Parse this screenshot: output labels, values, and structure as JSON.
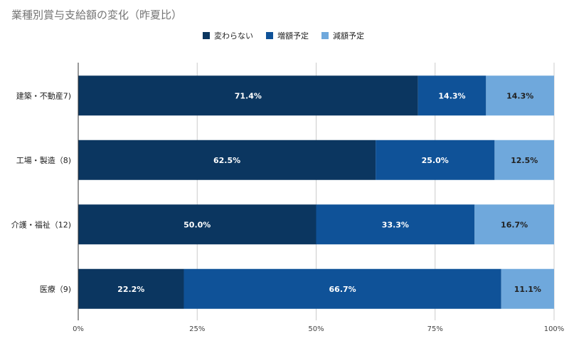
{
  "chart_data": {
    "type": "bar",
    "orientation": "horizontal",
    "stacked": "percent",
    "title": "業種別賞与支給額の変化（昨夏比）",
    "categories": [
      "建築・不動産7)",
      "工場・製造（8)",
      "介護・福祉（12)",
      "医療（9)"
    ],
    "series": [
      {
        "name": "変わらない",
        "color": "#0b3660",
        "values": [
          71.4,
          62.5,
          50.0,
          22.2
        ],
        "labels": [
          "71.4%",
          "62.5%",
          "50.0%",
          "22.2%"
        ],
        "label_color": "#ffffff"
      },
      {
        "name": "増額予定",
        "color": "#0f5298",
        "values": [
          14.3,
          25.0,
          33.3,
          66.7
        ],
        "labels": [
          "14.3%",
          "25.0%",
          "33.3%",
          "66.7%"
        ],
        "label_color": "#ffffff"
      },
      {
        "name": "減額予定",
        "color": "#6fa8dc",
        "values": [
          14.3,
          12.5,
          16.7,
          11.1
        ],
        "labels": [
          "14.3%",
          "12.5%",
          "16.7%",
          "11.1%"
        ],
        "label_color": "#222222"
      }
    ],
    "xticks": [
      "0%",
      "25%",
      "50%",
      "75%",
      "100%"
    ],
    "xlim": [
      0,
      100
    ],
    "legend": "top-right",
    "xlabel": "",
    "ylabel": ""
  }
}
